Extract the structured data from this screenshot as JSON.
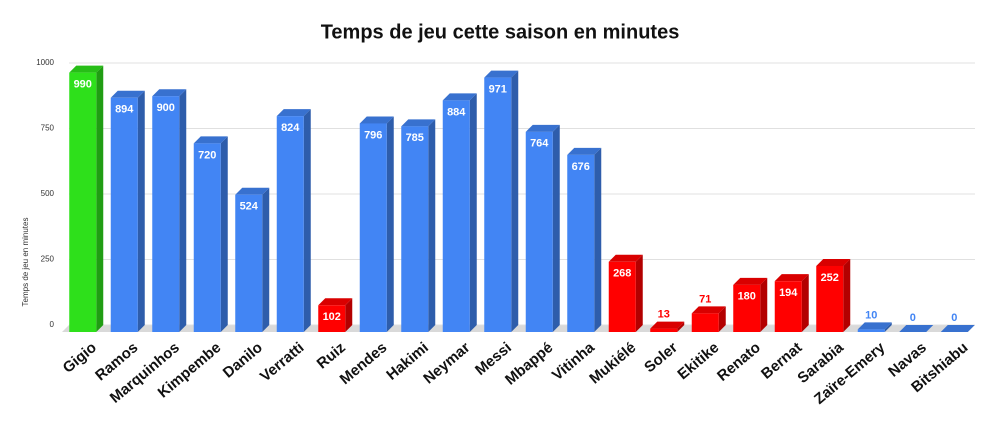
{
  "chart_data": {
    "type": "bar3d",
    "title": "Temps de jeu cette saison en minutes",
    "y_label": "Temps de jeu en minutes",
    "categories": [
      "Gigio",
      "Ramos",
      "Marquinhos",
      "Kimpembe",
      "Danilo",
      "Verratti",
      "Ruiz",
      "Mendes",
      "Hakimi",
      "Neymar",
      "Messi",
      "Mbappé",
      "Vitinha",
      "Mukiélé",
      "Soler",
      "Ekitike",
      "Renato",
      "Bernat",
      "Sarabia",
      "Zaïre-Emery",
      "Navas",
      "Bitshiabu"
    ],
    "values": [
      990,
      894,
      900,
      720,
      524,
      824,
      102,
      796,
      785,
      884,
      971,
      764,
      676,
      268,
      13,
      71,
      180,
      194,
      252,
      10,
      0,
      0
    ],
    "colors": [
      "#2ee01b",
      "#4285f4",
      "#4285f4",
      "#4285f4",
      "#4285f4",
      "#4285f4",
      "#ff0000",
      "#4285f4",
      "#4285f4",
      "#4285f4",
      "#4285f4",
      "#4285f4",
      "#4285f4",
      "#ff0000",
      "#ff0000",
      "#ff0000",
      "#ff0000",
      "#ff0000",
      "#ff0000",
      "#4285f4",
      "#4285f4",
      "#4285f4"
    ],
    "ylim": [
      0,
      1000
    ],
    "yticks": [
      0,
      250,
      500,
      750,
      1000
    ],
    "grid": true
  }
}
